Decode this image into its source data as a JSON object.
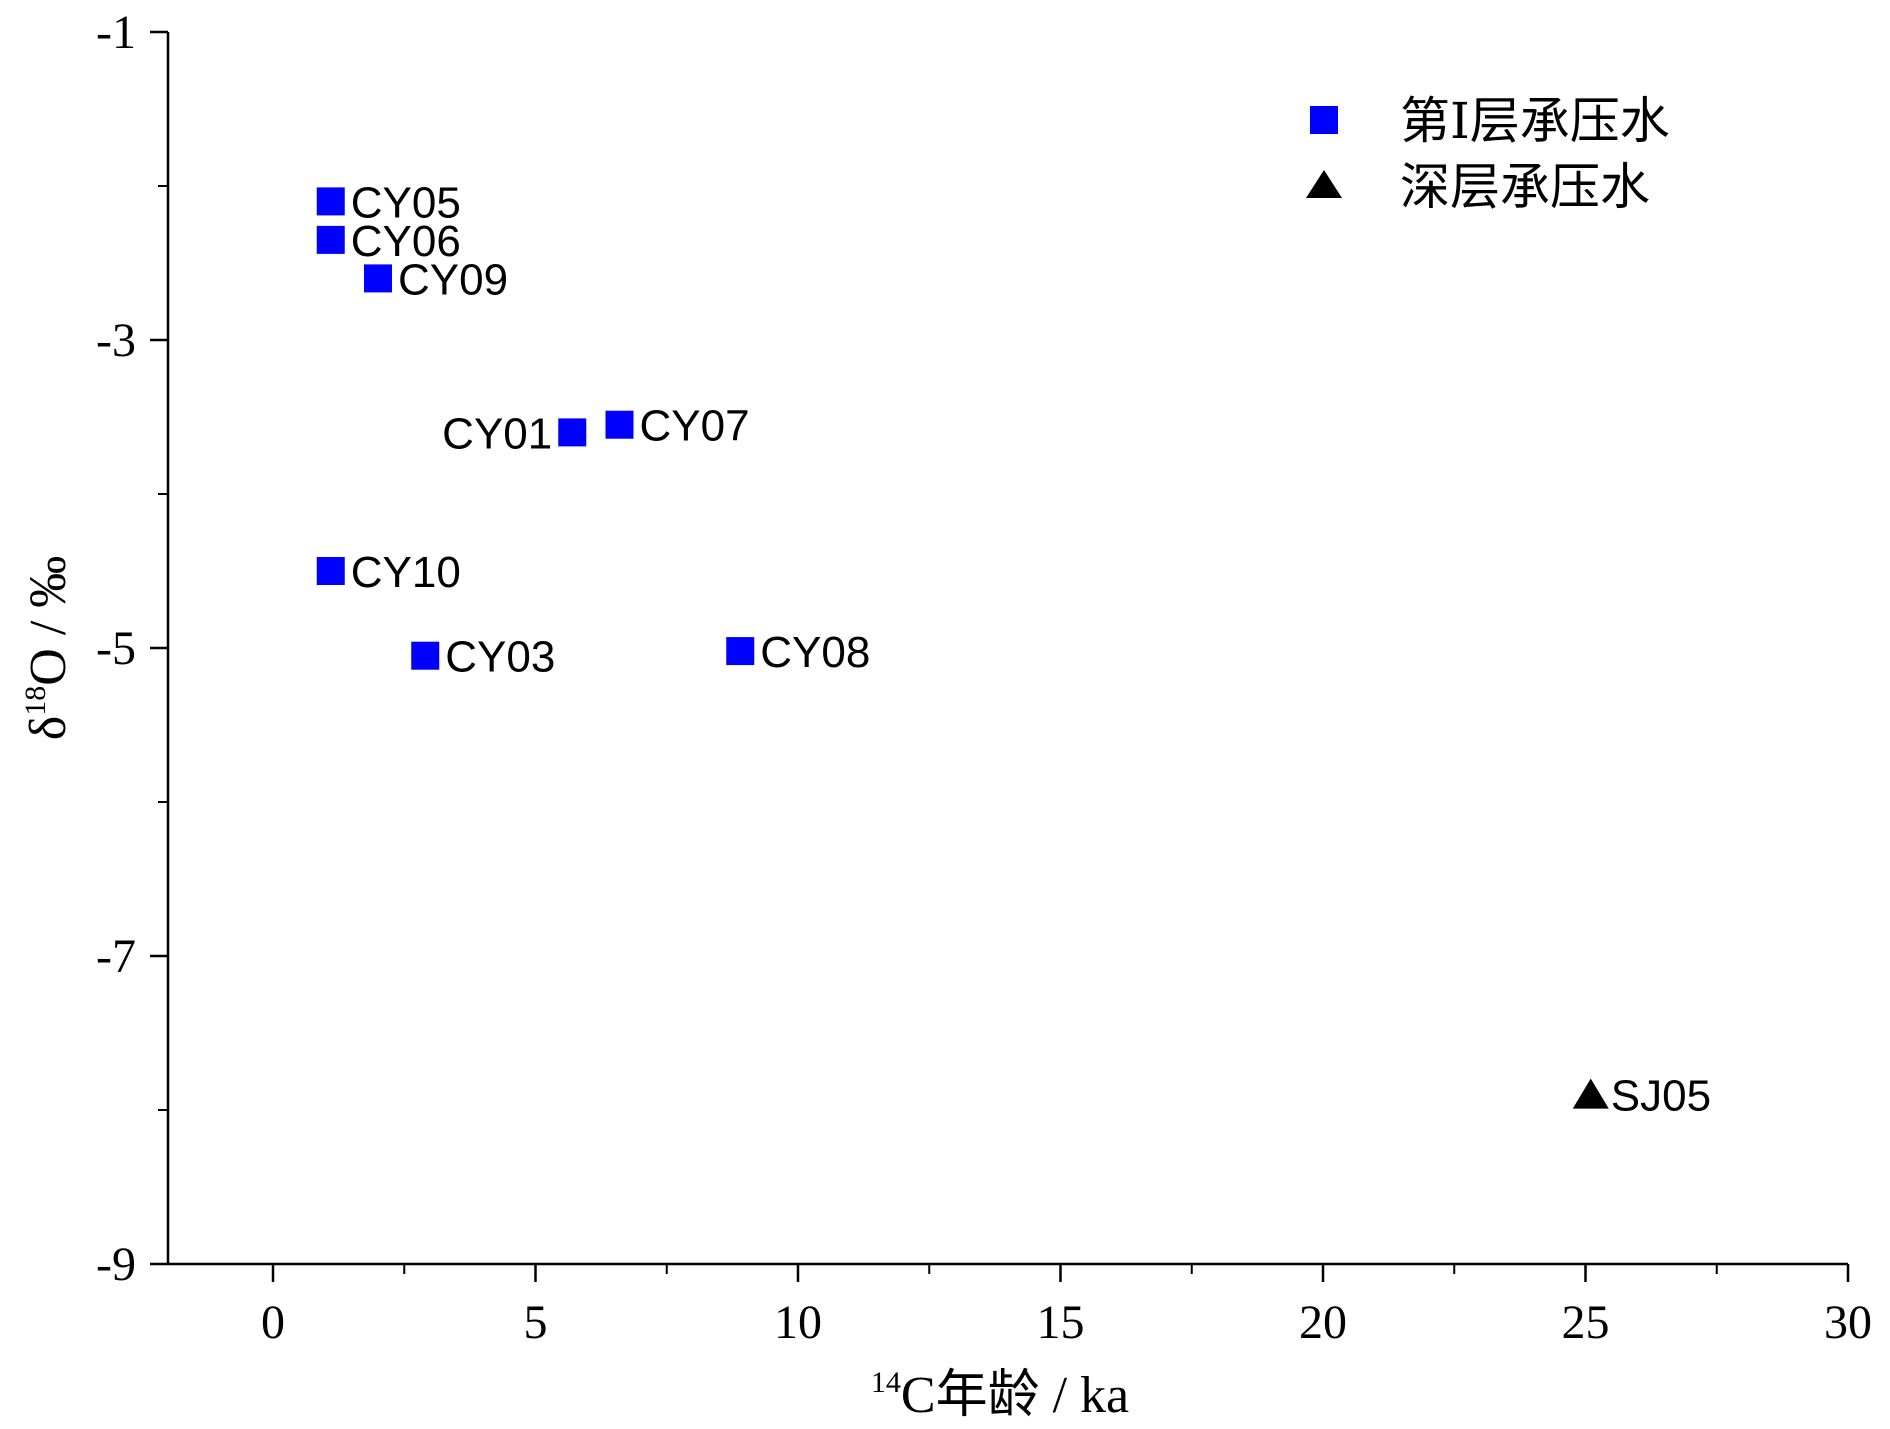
{
  "chart_data": {
    "type": "scatter",
    "title": "",
    "xlabel": {
      "sup": "14",
      "text": "C年龄 / ka"
    },
    "ylabel": {
      "pre": "δ",
      "sup": "18",
      "text": "O / ‰"
    },
    "xlim": [
      -2,
      30
    ],
    "ylim": [
      -9,
      -1
    ],
    "x_ticks": [
      0,
      5,
      10,
      15,
      20,
      25,
      30
    ],
    "y_ticks": [
      -1,
      -3,
      -5,
      -7,
      -9
    ],
    "grid": false,
    "legend_position": "top-right",
    "series": [
      {
        "name": "第Ⅰ层承压水",
        "marker": "square",
        "color": "#0000ff",
        "points": [
          {
            "label": "CY05",
            "x": 1.1,
            "y": -2.1
          },
          {
            "label": "CY06",
            "x": 1.1,
            "y": -2.35
          },
          {
            "label": "CY09",
            "x": 2.0,
            "y": -2.6
          },
          {
            "label": "CY01",
            "x": 5.7,
            "y": -3.6
          },
          {
            "label": "CY07",
            "x": 6.6,
            "y": -3.55
          },
          {
            "label": "CY10",
            "x": 1.1,
            "y": -4.5
          },
          {
            "label": "CY03",
            "x": 2.9,
            "y": -5.05
          },
          {
            "label": "CY08",
            "x": 8.9,
            "y": -5.02
          }
        ]
      },
      {
        "name": "深层承压水",
        "marker": "triangle",
        "color": "#000000",
        "points": [
          {
            "label": "SJ05",
            "x": 25.1,
            "y": -7.9
          }
        ]
      }
    ]
  }
}
